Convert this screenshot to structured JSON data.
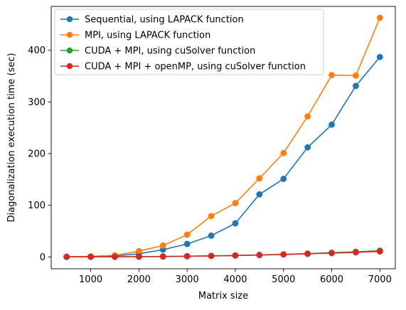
{
  "chart_data": {
    "type": "line",
    "title": "",
    "xlabel": "Matrix size",
    "ylabel": "Diagonalization execution time (sec)",
    "x": [
      500,
      1000,
      1500,
      2000,
      2500,
      3000,
      3500,
      4000,
      4500,
      5000,
      5500,
      6000,
      6500,
      7000
    ],
    "xlim": [
      180,
      7320
    ],
    "ylim": [
      -23,
      485
    ],
    "xticks": [
      1000,
      2000,
      3000,
      4000,
      5000,
      6000,
      7000
    ],
    "yticks": [
      0,
      100,
      200,
      300,
      400
    ],
    "grid": false,
    "legend_position": "top-left",
    "series": [
      {
        "name": "Sequential, using LAPACK function",
        "color": "#1f77b4",
        "values": [
          0.2,
          0.8,
          2.0,
          6.0,
          14.0,
          25.0,
          41.0,
          65.0,
          121.0,
          151.0,
          212.0,
          256.0,
          331.0,
          387.0
        ]
      },
      {
        "name": "MPI, using LAPACK function",
        "color": "#ff7f0e",
        "values": [
          0.3,
          1.0,
          3.0,
          11.0,
          22.0,
          43.0,
          79.0,
          104.0,
          152.0,
          201.0,
          272.0,
          352.0,
          351.0,
          463.0
        ]
      },
      {
        "name": "CUDA + MPI, using cuSolver function",
        "color": "#2ca02c",
        "values": [
          0.05,
          0.1,
          0.2,
          0.4,
          0.8,
          1.3,
          2.0,
          2.8,
          3.8,
          5.0,
          6.4,
          8.0,
          9.8,
          12.0
        ]
      },
      {
        "name": "CUDA + MPI + openMP, using cuSolver function",
        "color": "#d62728",
        "values": [
          0.05,
          0.1,
          0.2,
          0.4,
          0.7,
          1.2,
          1.8,
          2.6,
          3.5,
          4.6,
          5.9,
          7.3,
          8.8,
          10.5
        ]
      }
    ]
  }
}
